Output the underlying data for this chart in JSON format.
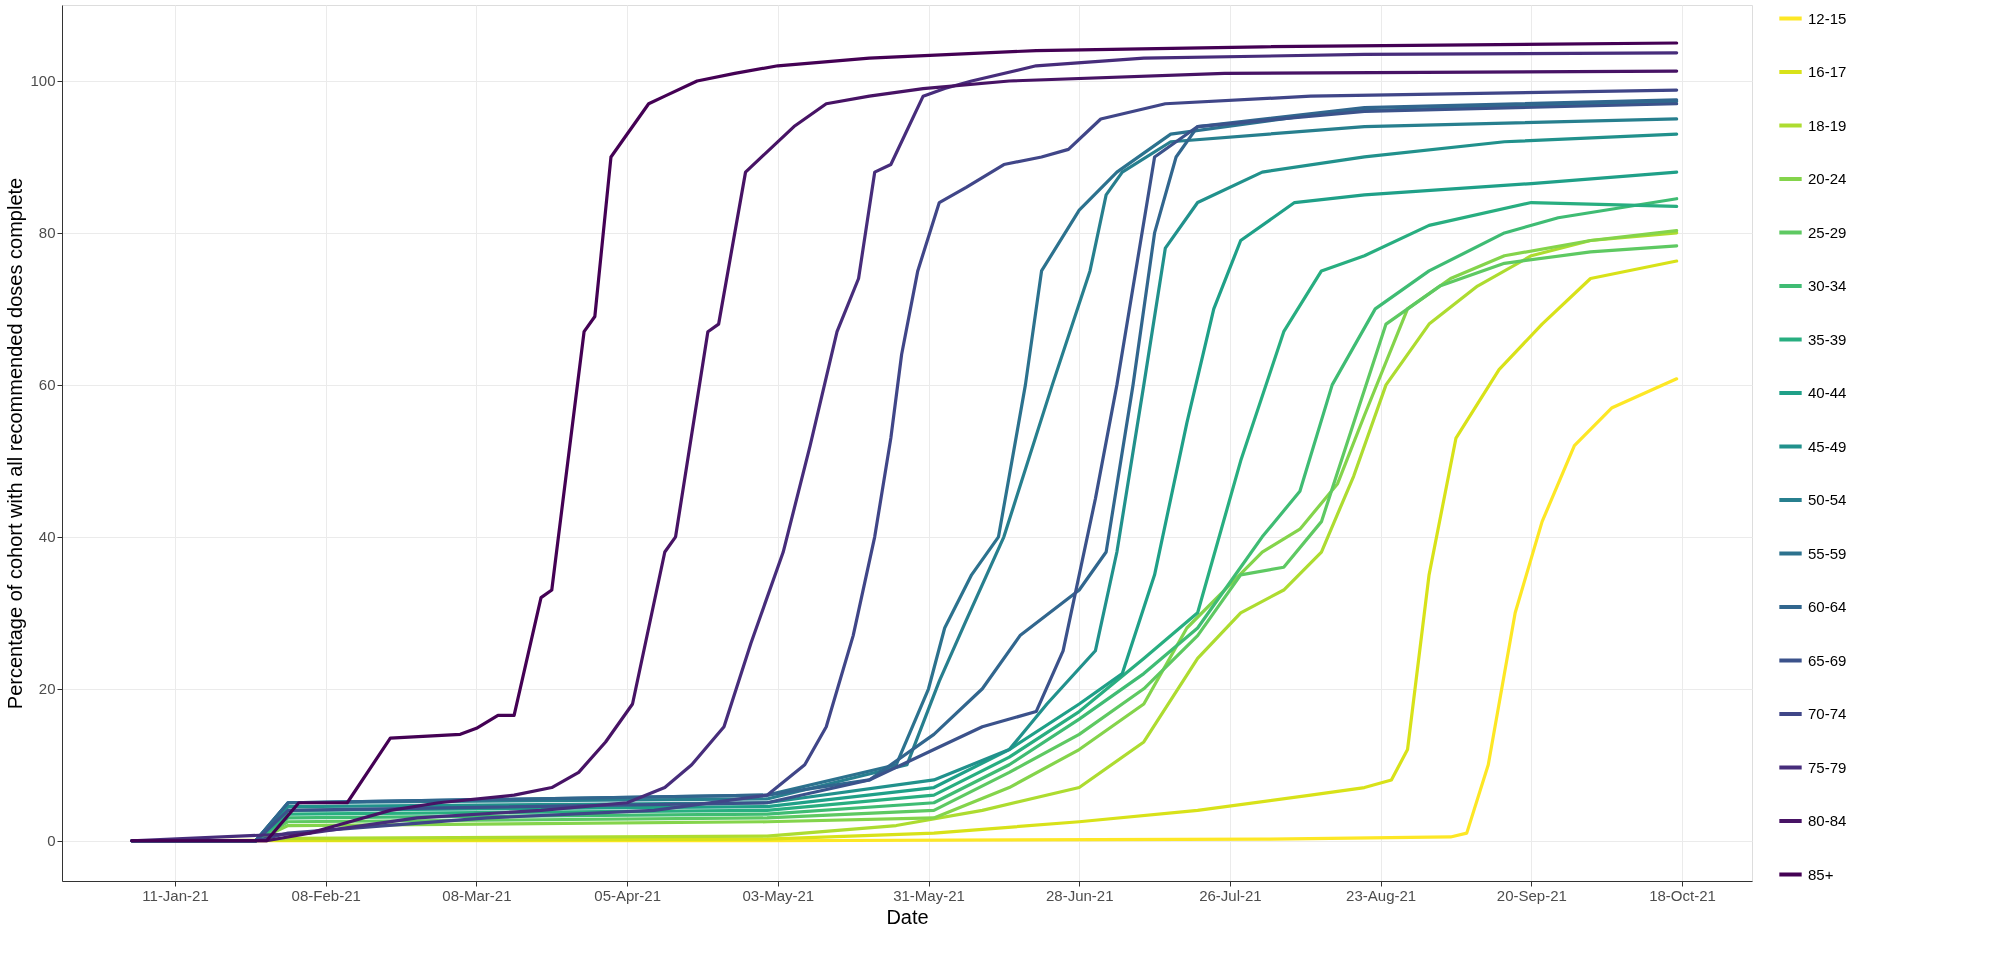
{
  "chart_data": {
    "type": "line",
    "xlabel": "Date",
    "ylabel": "Percentage of cohort with all recommended doses complete",
    "xlim": [
      "2020-12-21",
      "2021-10-31"
    ],
    "ylim": [
      -5.3,
      110
    ],
    "yticks": [
      0,
      20,
      40,
      60,
      80,
      100
    ],
    "xticks": [
      {
        "value": "2021-01-11",
        "label": "11-Jan-21"
      },
      {
        "value": "2021-02-08",
        "label": "08-Feb-21"
      },
      {
        "value": "2021-03-08",
        "label": "08-Mar-21"
      },
      {
        "value": "2021-04-05",
        "label": "05-Apr-21"
      },
      {
        "value": "2021-05-03",
        "label": "03-May-21"
      },
      {
        "value": "2021-05-31",
        "label": "31-May-21"
      },
      {
        "value": "2021-06-28",
        "label": "28-Jun-21"
      },
      {
        "value": "2021-07-26",
        "label": "26-Jul-21"
      },
      {
        "value": "2021-08-23",
        "label": "23-Aug-21"
      },
      {
        "value": "2021-09-20",
        "label": "20-Sep-21"
      },
      {
        "value": "2021-10-18",
        "label": "18-Oct-21"
      }
    ],
    "grid": true,
    "legend": "right",
    "marker": "none",
    "line_style": "solid",
    "series": [
      {
        "name": "12-15",
        "color": "#fde725",
        "x": [
          "2021-01-03",
          "2021-05-01",
          "2021-08-01",
          "2021-09-05",
          "2021-09-08",
          "2021-09-12",
          "2021-09-17",
          "2021-09-22",
          "2021-09-28",
          "2021-10-05",
          "2021-10-17"
        ],
        "values": [
          0,
          0,
          0.2,
          0.5,
          1,
          10,
          30,
          42,
          52,
          57,
          60.8
        ]
      },
      {
        "name": "16-17",
        "color": "#d8e219",
        "x": [
          "2021-01-03",
          "2021-05-01",
          "2021-06-01",
          "2021-06-28",
          "2021-07-20",
          "2021-08-10",
          "2021-08-20",
          "2021-08-25",
          "2021-08-28",
          "2021-09-01",
          "2021-09-06",
          "2021-09-14",
          "2021-09-22",
          "2021-10-01",
          "2021-10-17"
        ],
        "values": [
          0,
          0.2,
          1,
          2.5,
          4,
          6,
          7,
          8,
          12,
          35,
          53,
          62,
          68,
          74,
          76.3
        ]
      },
      {
        "name": "18-19",
        "color": "#addc30",
        "x": [
          "2021-01-03",
          "2021-01-26",
          "2021-02-01",
          "2021-05-01",
          "2021-05-25",
          "2021-06-10",
          "2021-06-28",
          "2021-07-10",
          "2021-07-20",
          "2021-07-28",
          "2021-08-05",
          "2021-08-12",
          "2021-08-18",
          "2021-08-24",
          "2021-09-01",
          "2021-09-10",
          "2021-09-20",
          "2021-10-01",
          "2021-10-17"
        ],
        "values": [
          0,
          0,
          0.3,
          0.6,
          2,
          4,
          7,
          13,
          24,
          30,
          33,
          38,
          48,
          60,
          68,
          73,
          77,
          79,
          80
        ]
      },
      {
        "name": "20-24",
        "color": "#84d44b",
        "x": [
          "2021-01-03",
          "2021-01-26",
          "2021-02-01",
          "2021-05-01",
          "2021-06-01",
          "2021-06-15",
          "2021-06-28",
          "2021-07-10",
          "2021-07-18",
          "2021-07-25",
          "2021-08-01",
          "2021-08-08",
          "2021-08-15",
          "2021-08-20",
          "2021-08-28",
          "2021-09-05",
          "2021-09-15",
          "2021-10-01",
          "2021-10-17"
        ],
        "values": [
          0,
          0,
          2,
          2.5,
          3,
          7,
          12,
          18,
          28,
          33,
          38,
          41,
          47,
          56,
          70,
          74,
          77,
          79,
          80.3
        ]
      },
      {
        "name": "25-29",
        "color": "#5ec962",
        "x": [
          "2021-01-03",
          "2021-01-26",
          "2021-02-01",
          "2021-05-01",
          "2021-06-01",
          "2021-06-15",
          "2021-06-28",
          "2021-07-10",
          "2021-07-20",
          "2021-07-28",
          "2021-08-05",
          "2021-08-12",
          "2021-08-18",
          "2021-08-24",
          "2021-09-03",
          "2021-09-15",
          "2021-10-01",
          "2021-10-17"
        ],
        "values": [
          0,
          0,
          2.5,
          3,
          4,
          9,
          14,
          20,
          27,
          35,
          36,
          42,
          55,
          68,
          73,
          76,
          77.5,
          78.3
        ]
      },
      {
        "name": "30-34",
        "color": "#3fbc73",
        "x": [
          "2021-01-03",
          "2021-01-26",
          "2021-02-01",
          "2021-05-01",
          "2021-06-01",
          "2021-06-15",
          "2021-06-28",
          "2021-07-10",
          "2021-07-20",
          "2021-07-28",
          "2021-08-01",
          "2021-08-08",
          "2021-08-14",
          "2021-08-22",
          "2021-09-01",
          "2021-09-15",
          "2021-09-25",
          "2021-10-17"
        ],
        "values": [
          0,
          0,
          3,
          3.5,
          5,
          10,
          16,
          22,
          28,
          36,
          40,
          46,
          60,
          70,
          75,
          80,
          82,
          84.5
        ]
      },
      {
        "name": "35-39",
        "color": "#28ae80",
        "x": [
          "2021-01-03",
          "2021-01-26",
          "2021-02-01",
          "2021-05-01",
          "2021-06-01",
          "2021-06-15",
          "2021-06-28",
          "2021-07-10",
          "2021-07-20",
          "2021-07-28",
          "2021-08-05",
          "2021-08-12",
          "2021-08-20",
          "2021-09-01",
          "2021-09-20",
          "2021-10-17"
        ],
        "values": [
          0,
          0,
          3.5,
          4,
          6,
          11,
          17,
          24,
          30,
          50,
          67,
          75,
          77,
          81,
          84,
          83.5
        ]
      },
      {
        "name": "40-44",
        "color": "#1fa088",
        "x": [
          "2021-01-03",
          "2021-01-26",
          "2021-02-01",
          "2021-05-01",
          "2021-06-01",
          "2021-06-15",
          "2021-06-28",
          "2021-07-06",
          "2021-07-12",
          "2021-07-18",
          "2021-07-23",
          "2021-07-28",
          "2021-08-07",
          "2021-08-20",
          "2021-09-20",
          "2021-10-17"
        ],
        "values": [
          0,
          0,
          4,
          4.5,
          7,
          12,
          18,
          22,
          35,
          55,
          70,
          79,
          84,
          85,
          86.5,
          88
        ]
      },
      {
        "name": "45-49",
        "color": "#21918c",
        "x": [
          "2021-01-03",
          "2021-01-26",
          "2021-02-01",
          "2021-05-01",
          "2021-06-01",
          "2021-06-15",
          "2021-06-22",
          "2021-07-01",
          "2021-07-05",
          "2021-07-10",
          "2021-07-14",
          "2021-07-20",
          "2021-08-01",
          "2021-08-20",
          "2021-09-15",
          "2021-10-17"
        ],
        "values": [
          0,
          0,
          4.5,
          5,
          8,
          12,
          18,
          25,
          38,
          60,
          78,
          84,
          88,
          90,
          92,
          93
        ]
      },
      {
        "name": "50-54",
        "color": "#277f8e",
        "x": [
          "2021-01-03",
          "2021-01-26",
          "2021-02-01",
          "2021-05-01",
          "2021-05-27",
          "2021-06-02",
          "2021-06-07",
          "2021-06-14",
          "2021-06-23",
          "2021-06-30",
          "2021-07-03",
          "2021-07-06",
          "2021-07-15",
          "2021-08-20",
          "2021-10-17"
        ],
        "values": [
          0,
          0,
          5,
          5.5,
          10,
          21,
          29,
          40,
          60,
          75,
          85,
          88,
          92,
          94,
          95
        ]
      },
      {
        "name": "55-59",
        "color": "#2c728e",
        "x": [
          "2021-01-03",
          "2021-01-26",
          "2021-02-01",
          "2021-05-01",
          "2021-05-25",
          "2021-05-31",
          "2021-06-03",
          "2021-06-08",
          "2021-06-13",
          "2021-06-18",
          "2021-06-21",
          "2021-06-28",
          "2021-07-05",
          "2021-07-15",
          "2021-08-15",
          "2021-10-17"
        ],
        "values": [
          0,
          0,
          5,
          6,
          10,
          20,
          28,
          35,
          40,
          60,
          75,
          83,
          88,
          93,
          96,
          97.3
        ]
      },
      {
        "name": "60-64",
        "color": "#31668e",
        "x": [
          "2021-01-03",
          "2021-01-26",
          "2021-02-01",
          "2021-05-01",
          "2021-05-20",
          "2021-06-01",
          "2021-06-10",
          "2021-06-17",
          "2021-06-28",
          "2021-07-03",
          "2021-07-08",
          "2021-07-12",
          "2021-07-16",
          "2021-07-20",
          "2021-08-20",
          "2021-10-17"
        ],
        "values": [
          0,
          0,
          5,
          6,
          8,
          14,
          20,
          27,
          33,
          38,
          60,
          80,
          90,
          94,
          96.5,
          97.5
        ]
      },
      {
        "name": "65-69",
        "color": "#3b528b",
        "x": [
          "2021-01-03",
          "2021-01-26",
          "2021-02-01",
          "2021-05-01",
          "2021-05-20",
          "2021-06-01",
          "2021-06-10",
          "2021-06-20",
          "2021-06-25",
          "2021-07-01",
          "2021-07-05",
          "2021-07-12",
          "2021-07-20",
          "2021-08-20",
          "2021-10-17"
        ],
        "values": [
          0,
          0,
          4,
          5,
          8,
          12,
          15,
          17,
          25,
          45,
          60,
          90,
          94,
          96,
          97
        ]
      },
      {
        "name": "70-74",
        "color": "#404688",
        "x": [
          "2021-01-03",
          "2021-01-26",
          "2021-02-01",
          "2021-03-10",
          "2021-04-10",
          "2021-05-01",
          "2021-05-08",
          "2021-05-12",
          "2021-05-17",
          "2021-05-21",
          "2021-05-24",
          "2021-05-26",
          "2021-05-29",
          "2021-06-02",
          "2021-06-07",
          "2021-06-14",
          "2021-06-21",
          "2021-06-26",
          "2021-07-02",
          "2021-07-14",
          "2021-08-10",
          "2021-10-17"
        ],
        "values": [
          0,
          0,
          1,
          3,
          4,
          6,
          10,
          15,
          27,
          40,
          53,
          64,
          75,
          84,
          86,
          89,
          90,
          91,
          95,
          97,
          98,
          98.8
        ]
      },
      {
        "name": "75-79",
        "color": "#472d7b",
        "x": [
          "2021-01-03",
          "2021-02-05",
          "2021-02-25",
          "2021-03-20",
          "2021-04-05",
          "2021-04-12",
          "2021-04-17",
          "2021-04-23",
          "2021-04-28",
          "2021-05-04",
          "2021-05-09",
          "2021-05-14",
          "2021-05-18",
          "2021-05-21",
          "2021-05-24",
          "2021-05-30",
          "2021-06-03",
          "2021-06-08",
          "2021-06-20",
          "2021-07-10",
          "2021-08-20",
          "2021-10-17"
        ],
        "values": [
          0,
          1,
          3,
          4,
          5,
          7,
          10,
          15,
          26,
          38,
          52,
          67,
          74,
          88,
          89,
          98,
          99,
          100,
          102,
          103,
          103.5,
          103.7
        ]
      },
      {
        "name": "80-84",
        "color": "#471365",
        "x": [
          "2021-01-03",
          "2021-01-28",
          "2021-02-05",
          "2021-02-10",
          "2021-02-20",
          "2021-03-01",
          "2021-03-15",
          "2021-03-22",
          "2021-03-27",
          "2021-04-01",
          "2021-04-06",
          "2021-04-12",
          "2021-04-14",
          "2021-04-20",
          "2021-04-22",
          "2021-04-27",
          "2021-04-30",
          "2021-05-06",
          "2021-05-12",
          "2021-05-20",
          "2021-05-30",
          "2021-06-15",
          "2021-07-25",
          "2021-10-17"
        ],
        "values": [
          0,
          0,
          1,
          2,
          4,
          5,
          6,
          7,
          9,
          13,
          18,
          38,
          40,
          67,
          68,
          88,
          90,
          94,
          97,
          98,
          99,
          100,
          101,
          101.3
        ]
      },
      {
        "name": "85+",
        "color": "#440154",
        "x": [
          "2021-01-03",
          "2021-01-28",
          "2021-02-03",
          "2021-02-12",
          "2021-02-20",
          "2021-03-05",
          "2021-03-08",
          "2021-03-12",
          "2021-03-15",
          "2021-03-20",
          "2021-03-22",
          "2021-03-28",
          "2021-03-30",
          "2021-04-02",
          "2021-04-04",
          "2021-04-09",
          "2021-04-12",
          "2021-04-18",
          "2021-04-25",
          "2021-05-03",
          "2021-05-20",
          "2021-06-20",
          "2021-08-01",
          "2021-10-17"
        ],
        "values": [
          0,
          0,
          5,
          5,
          13.5,
          14,
          14.8,
          16.5,
          16.5,
          32,
          33,
          67,
          69,
          90,
          92,
          97,
          98,
          100,
          101,
          102,
          103,
          104,
          104.5,
          105
        ]
      }
    ]
  }
}
